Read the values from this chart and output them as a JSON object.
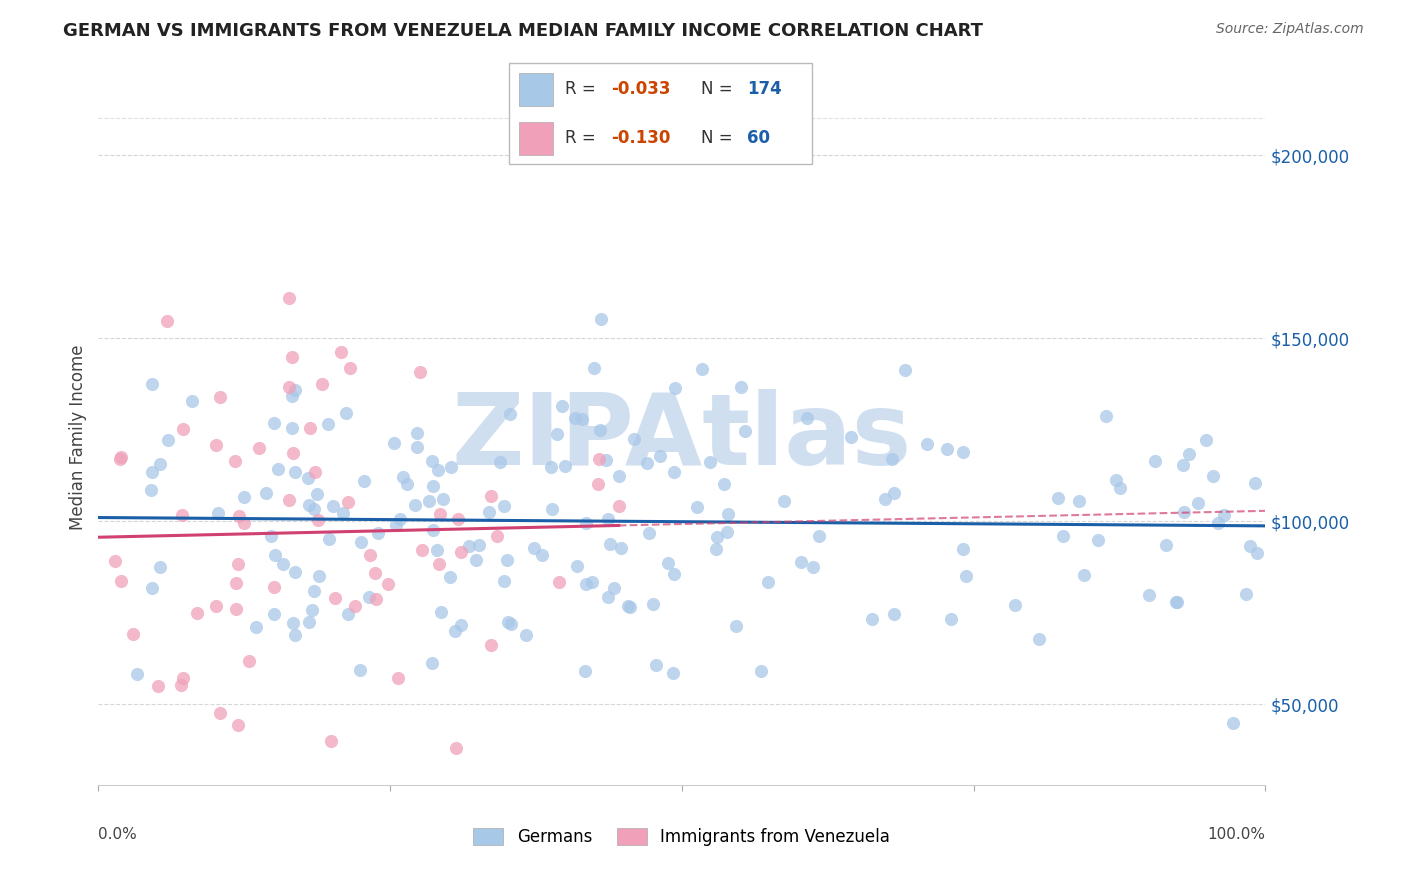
{
  "title": "GERMAN VS IMMIGRANTS FROM VENEZUELA MEDIAN FAMILY INCOME CORRELATION CHART",
  "source": "Source: ZipAtlas.com",
  "ylabel": "Median Family Income",
  "y_ticks": [
    50000,
    100000,
    150000,
    200000
  ],
  "y_tick_labels": [
    "$50,000",
    "$100,000",
    "$150,000",
    "$200,000"
  ],
  "german_color": "#a8c8e8",
  "german_line_color": "#1a5fa8",
  "venezuela_color": "#f0a0b8",
  "venezuela_line_color": "#d04070",
  "background_color": "#ffffff",
  "grid_color": "#cccccc",
  "watermark_text": "ZIPAtlas",
  "watermark_color": "#d0dff0",
  "title_fontsize": 13,
  "source_fontsize": 10,
  "legend_R_color": "#cc4400",
  "legend_N_color": "#1a5fa8",
  "xmin": 0.0,
  "xmax": 1.0,
  "ymin": 28000,
  "ymax": 218000
}
